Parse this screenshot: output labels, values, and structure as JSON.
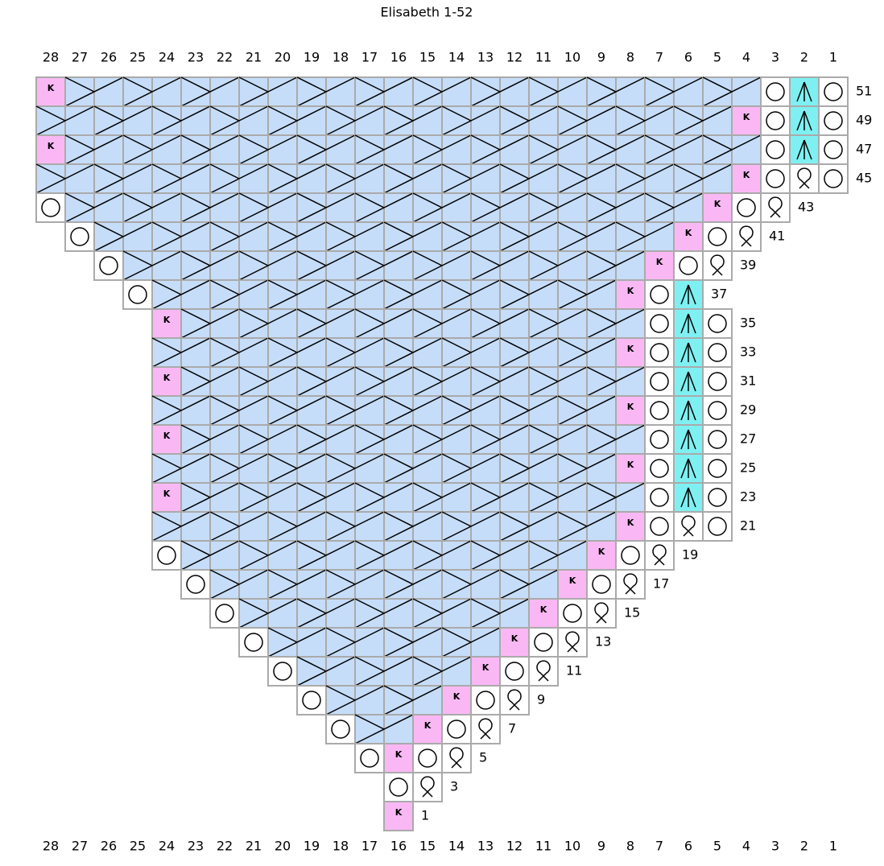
{
  "title": "Elisabeth 1-52",
  "columns": [
    28,
    27,
    26,
    25,
    24,
    23,
    22,
    21,
    20,
    19,
    18,
    17,
    16,
    15,
    14,
    13,
    12,
    11,
    10,
    9,
    8,
    7,
    6,
    5,
    4,
    3,
    2,
    1
  ],
  "rows": [
    {
      "number": 51,
      "stitches": [
        "K",
        "c",
        "c",
        "c",
        "c",
        "c",
        "c",
        "c",
        "c",
        "c",
        "c",
        "c",
        "c",
        "c",
        "c",
        "c",
        "c",
        "c",
        "c",
        "c",
        "c",
        "c",
        "c",
        "c",
        "c",
        "o",
        "^",
        "o"
      ]
    },
    {
      "number": 49,
      "stitches": [
        "c",
        "c",
        "c",
        "c",
        "c",
        "c",
        "c",
        "c",
        "c",
        "c",
        "c",
        "c",
        "c",
        "c",
        "c",
        "c",
        "c",
        "c",
        "c",
        "c",
        "c",
        "c",
        "c",
        "c",
        "K",
        "o",
        "^",
        "o"
      ]
    },
    {
      "number": 47,
      "stitches": [
        "K",
        "c",
        "c",
        "c",
        "c",
        "c",
        "c",
        "c",
        "c",
        "c",
        "c",
        "c",
        "c",
        "c",
        "c",
        "c",
        "c",
        "c",
        "c",
        "c",
        "c",
        "c",
        "c",
        "c",
        "c",
        "o",
        "^",
        "o"
      ]
    },
    {
      "number": 45,
      "stitches": [
        "c",
        "c",
        "c",
        "c",
        "c",
        "c",
        "c",
        "c",
        "c",
        "c",
        "c",
        "c",
        "c",
        "c",
        "c",
        "c",
        "c",
        "c",
        "c",
        "c",
        "c",
        "c",
        "c",
        "c",
        "K",
        "o",
        "q",
        "o"
      ]
    },
    {
      "number": 43,
      "stitches": [
        "o",
        "c",
        "c",
        "c",
        "c",
        "c",
        "c",
        "c",
        "c",
        "c",
        "c",
        "c",
        "c",
        "c",
        "c",
        "c",
        "c",
        "c",
        "c",
        "c",
        "c",
        "c",
        "c",
        "K",
        "o",
        "q",
        null,
        null
      ]
    },
    {
      "number": 41,
      "stitches": [
        null,
        "o",
        "c",
        "c",
        "c",
        "c",
        "c",
        "c",
        "c",
        "c",
        "c",
        "c",
        "c",
        "c",
        "c",
        "c",
        "c",
        "c",
        "c",
        "c",
        "c",
        "c",
        "K",
        "o",
        "q",
        null,
        null,
        null
      ]
    },
    {
      "number": 39,
      "stitches": [
        null,
        null,
        "o",
        "c",
        "c",
        "c",
        "c",
        "c",
        "c",
        "c",
        "c",
        "c",
        "c",
        "c",
        "c",
        "c",
        "c",
        "c",
        "c",
        "c",
        "c",
        "K",
        "o",
        "q",
        null,
        null,
        null,
        null
      ]
    },
    {
      "number": 37,
      "stitches": [
        null,
        null,
        null,
        "o",
        "c",
        "c",
        "c",
        "c",
        "c",
        "c",
        "c",
        "c",
        "c",
        "c",
        "c",
        "c",
        "c",
        "c",
        "c",
        "c",
        "K",
        "o",
        "^",
        null,
        null,
        null,
        null,
        null
      ]
    },
    {
      "number": 35,
      "stitches": [
        null,
        null,
        null,
        null,
        "K",
        "c",
        "c",
        "c",
        "c",
        "c",
        "c",
        "c",
        "c",
        "c",
        "c",
        "c",
        "c",
        "c",
        "c",
        "c",
        "c",
        "o",
        "^",
        "o",
        null,
        null,
        null,
        null
      ]
    },
    {
      "number": 33,
      "stitches": [
        null,
        null,
        null,
        null,
        "c",
        "c",
        "c",
        "c",
        "c",
        "c",
        "c",
        "c",
        "c",
        "c",
        "c",
        "c",
        "c",
        "c",
        "c",
        "c",
        "K",
        "o",
        "^",
        "o",
        null,
        null,
        null,
        null
      ]
    },
    {
      "number": 31,
      "stitches": [
        null,
        null,
        null,
        null,
        "K",
        "c",
        "c",
        "c",
        "c",
        "c",
        "c",
        "c",
        "c",
        "c",
        "c",
        "c",
        "c",
        "c",
        "c",
        "c",
        "c",
        "o",
        "^",
        "o",
        null,
        null,
        null,
        null
      ]
    },
    {
      "number": 29,
      "stitches": [
        null,
        null,
        null,
        null,
        "c",
        "c",
        "c",
        "c",
        "c",
        "c",
        "c",
        "c",
        "c",
        "c",
        "c",
        "c",
        "c",
        "c",
        "c",
        "c",
        "K",
        "o",
        "^",
        "o",
        null,
        null,
        null,
        null
      ]
    },
    {
      "number": 27,
      "stitches": [
        null,
        null,
        null,
        null,
        "K",
        "c",
        "c",
        "c",
        "c",
        "c",
        "c",
        "c",
        "c",
        "c",
        "c",
        "c",
        "c",
        "c",
        "c",
        "c",
        "c",
        "o",
        "^",
        "o",
        null,
        null,
        null,
        null
      ]
    },
    {
      "number": 25,
      "stitches": [
        null,
        null,
        null,
        null,
        "c",
        "c",
        "c",
        "c",
        "c",
        "c",
        "c",
        "c",
        "c",
        "c",
        "c",
        "c",
        "c",
        "c",
        "c",
        "c",
        "K",
        "o",
        "^",
        "o",
        null,
        null,
        null,
        null
      ]
    },
    {
      "number": 23,
      "stitches": [
        null,
        null,
        null,
        null,
        "K",
        "c",
        "c",
        "c",
        "c",
        "c",
        "c",
        "c",
        "c",
        "c",
        "c",
        "c",
        "c",
        "c",
        "c",
        "c",
        "c",
        "o",
        "^",
        "o",
        null,
        null,
        null,
        null
      ]
    },
    {
      "number": 21,
      "stitches": [
        null,
        null,
        null,
        null,
        "c",
        "c",
        "c",
        "c",
        "c",
        "c",
        "c",
        "c",
        "c",
        "c",
        "c",
        "c",
        "c",
        "c",
        "c",
        "c",
        "K",
        "o",
        "q",
        "o",
        null,
        null,
        null,
        null
      ]
    },
    {
      "number": 19,
      "stitches": [
        null,
        null,
        null,
        null,
        "o",
        "c",
        "c",
        "c",
        "c",
        "c",
        "c",
        "c",
        "c",
        "c",
        "c",
        "c",
        "c",
        "c",
        "c",
        "K",
        "o",
        "q",
        null,
        null,
        null,
        null,
        null,
        null
      ]
    },
    {
      "number": 17,
      "stitches": [
        null,
        null,
        null,
        null,
        null,
        "o",
        "c",
        "c",
        "c",
        "c",
        "c",
        "c",
        "c",
        "c",
        "c",
        "c",
        "c",
        "c",
        "K",
        "o",
        "q",
        null,
        null,
        null,
        null,
        null,
        null,
        null
      ]
    },
    {
      "number": 15,
      "stitches": [
        null,
        null,
        null,
        null,
        null,
        null,
        "o",
        "c",
        "c",
        "c",
        "c",
        "c",
        "c",
        "c",
        "c",
        "c",
        "c",
        "K",
        "o",
        "q",
        null,
        null,
        null,
        null,
        null,
        null,
        null,
        null
      ]
    },
    {
      "number": 13,
      "stitches": [
        null,
        null,
        null,
        null,
        null,
        null,
        null,
        "o",
        "c",
        "c",
        "c",
        "c",
        "c",
        "c",
        "c",
        "c",
        "K",
        "o",
        "q",
        null,
        null,
        null,
        null,
        null,
        null,
        null,
        null,
        null
      ]
    },
    {
      "number": 11,
      "stitches": [
        null,
        null,
        null,
        null,
        null,
        null,
        null,
        null,
        "o",
        "c",
        "c",
        "c",
        "c",
        "c",
        "c",
        "K",
        "o",
        "q",
        null,
        null,
        null,
        null,
        null,
        null,
        null,
        null,
        null,
        null
      ]
    },
    {
      "number": 9,
      "stitches": [
        null,
        null,
        null,
        null,
        null,
        null,
        null,
        null,
        null,
        "o",
        "c",
        "c",
        "c",
        "c",
        "K",
        "o",
        "q",
        null,
        null,
        null,
        null,
        null,
        null,
        null,
        null,
        null,
        null,
        null
      ]
    },
    {
      "number": 7,
      "stitches": [
        null,
        null,
        null,
        null,
        null,
        null,
        null,
        null,
        null,
        null,
        "o",
        "c",
        "c",
        "K",
        "o",
        "q",
        null,
        null,
        null,
        null,
        null,
        null,
        null,
        null,
        null,
        null,
        null,
        null
      ]
    },
    {
      "number": 5,
      "stitches": [
        null,
        null,
        null,
        null,
        null,
        null,
        null,
        null,
        null,
        null,
        null,
        "o",
        "K",
        "o",
        "q",
        null,
        null,
        null,
        null,
        null,
        null,
        null,
        null,
        null,
        null,
        null,
        null,
        null
      ]
    },
    {
      "number": 3,
      "stitches": [
        null,
        null,
        null,
        null,
        null,
        null,
        null,
        null,
        null,
        null,
        null,
        null,
        "o",
        "q",
        null,
        null,
        null,
        null,
        null,
        null,
        null,
        null,
        null,
        null,
        null,
        null,
        null,
        null
      ]
    },
    {
      "number": 1,
      "stitches": [
        null,
        null,
        null,
        null,
        null,
        null,
        null,
        null,
        null,
        null,
        null,
        null,
        "K",
        null,
        null,
        null,
        null,
        null,
        null,
        null,
        null,
        null,
        null,
        null,
        null,
        null,
        null,
        null
      ]
    }
  ]
}
